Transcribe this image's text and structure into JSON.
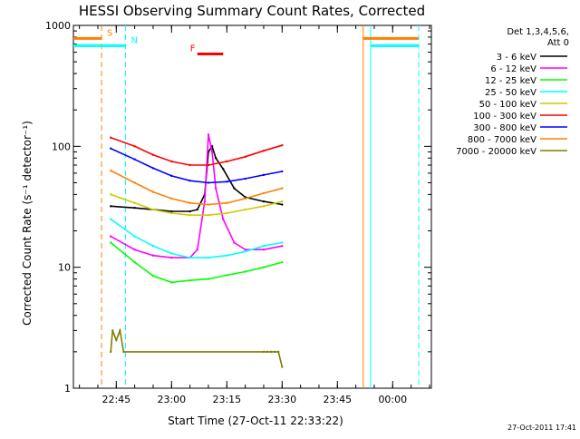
{
  "chart_data": {
    "type": "line",
    "title": "HESSI Observing Summary Count Rates, Corrected",
    "xlabel": "Start Time (27-Oct-11 22:33:22)",
    "ylabel": "Corrected Count Rate (s⁻¹ detector⁻¹)",
    "y_scale": "log",
    "ylim": [
      1,
      1000
    ],
    "xlim": [
      "22:33:22",
      "00:10:30"
    ],
    "x_ticks": [
      "22:45",
      "23:00",
      "23:15",
      "23:30",
      "23:45",
      "00:00"
    ],
    "y_ticks": [
      "1",
      "10",
      "100",
      "1000"
    ],
    "legend_header": [
      "Det 1,3,4,5,6,",
      "Att 0"
    ],
    "legend_position": "right",
    "footer": "27-Oct-2011 17:41",
    "annotations": [
      {
        "label": "S",
        "color": "#ff8000",
        "y": 780,
        "x": [
          "22:33:22",
          "22:41:00"
        ]
      },
      {
        "label": "N",
        "color": "#00ffff",
        "y": 680,
        "x": [
          "22:33:22",
          "22:47:30"
        ]
      },
      {
        "label": "F",
        "color": "#ff0000",
        "y": 580,
        "x": [
          "23:07:00",
          "23:14:00"
        ]
      }
    ],
    "intervals": [
      {
        "type": "saa",
        "color": "#ff8000",
        "lines_at": [
          "22:41:00",
          "23:52:00"
        ],
        "dashed": true,
        "level": 780
      },
      {
        "type": "night",
        "color": "#00ffff",
        "lines_at": [
          "22:47:30",
          "23:54:00"
        ],
        "dashed": true,
        "level": 680
      }
    ],
    "series": [
      {
        "name": "3 - 6 keV",
        "color": "#000000",
        "x": [
          "22:43:30",
          "22:50",
          "22:55",
          "23:00",
          "23:05",
          "23:07",
          "23:09",
          "23:10",
          "23:11",
          "23:12",
          "23:14",
          "23:17",
          "23:20",
          "23:25",
          "23:30"
        ],
        "values": [
          32,
          31,
          30,
          29,
          29,
          30,
          40,
          90,
          100,
          80,
          65,
          45,
          38,
          35,
          33
        ]
      },
      {
        "name": "6 - 12 keV",
        "color": "#ff00ff",
        "x": [
          "22:43:30",
          "22:50",
          "22:55",
          "23:00",
          "23:05",
          "23:07",
          "23:09",
          "23:10",
          "23:11",
          "23:12",
          "23:14",
          "23:17",
          "23:20",
          "23:25",
          "23:30"
        ],
        "values": [
          18,
          14,
          12.5,
          12,
          12,
          14,
          35,
          125,
          90,
          45,
          25,
          16,
          14,
          14,
          15
        ]
      },
      {
        "name": "12 - 25 keV",
        "color": "#00ff00",
        "x": [
          "22:43:30",
          "22:50",
          "22:55",
          "23:00",
          "23:05",
          "23:10",
          "23:15",
          "23:20",
          "23:25",
          "23:30"
        ],
        "values": [
          16,
          11,
          8.5,
          7.5,
          7.8,
          8.0,
          8.6,
          9.2,
          10,
          11
        ]
      },
      {
        "name": "25 - 50 keV",
        "color": "#00ffff",
        "x": [
          "22:43:30",
          "22:50",
          "22:55",
          "23:00",
          "23:05",
          "23:10",
          "23:15",
          "23:20",
          "23:25",
          "23:30"
        ],
        "values": [
          25,
          18,
          15,
          13,
          12,
          12,
          12.5,
          13.5,
          15,
          16
        ]
      },
      {
        "name": "50 - 100 keV",
        "color": "#cccc00",
        "x": [
          "22:43:30",
          "22:50",
          "22:55",
          "23:00",
          "23:05",
          "23:10",
          "23:15",
          "23:20",
          "23:25",
          "23:30"
        ],
        "values": [
          40,
          34,
          30,
          28,
          27,
          27,
          28,
          30,
          32,
          35
        ]
      },
      {
        "name": "100 - 300 keV",
        "color": "#ff0000",
        "x": [
          "22:43:30",
          "22:50",
          "22:55",
          "23:00",
          "23:05",
          "23:10",
          "23:15",
          "23:20",
          "23:25",
          "23:30"
        ],
        "values": [
          118,
          100,
          85,
          75,
          70,
          70,
          75,
          82,
          92,
          102
        ]
      },
      {
        "name": "300 - 800 keV",
        "color": "#0000ff",
        "x": [
          "22:43:30",
          "22:50",
          "22:55",
          "23:00",
          "23:05",
          "23:10",
          "23:15",
          "23:20",
          "23:25",
          "23:30"
        ],
        "values": [
          96,
          78,
          66,
          57,
          52,
          50,
          51,
          54,
          58,
          62
        ]
      },
      {
        "name": "800 - 7000 keV",
        "color": "#ff8000",
        "x": [
          "22:43:30",
          "22:50",
          "22:55",
          "23:00",
          "23:05",
          "23:10",
          "23:15",
          "23:20",
          "23:25",
          "23:30"
        ],
        "values": [
          63,
          50,
          42,
          37,
          34,
          33,
          34,
          37,
          41,
          45
        ]
      },
      {
        "name": "7000 - 20000 keV",
        "color": "#808000",
        "x": [
          "22:43:30",
          "22:44",
          "22:45",
          "22:46",
          "22:47",
          "23:25",
          "23:26",
          "23:27",
          "23:28",
          "23:29",
          "23:30"
        ],
        "values": [
          2,
          3,
          2.5,
          3,
          2,
          2,
          2,
          2,
          2,
          2,
          1.5
        ]
      }
    ]
  }
}
